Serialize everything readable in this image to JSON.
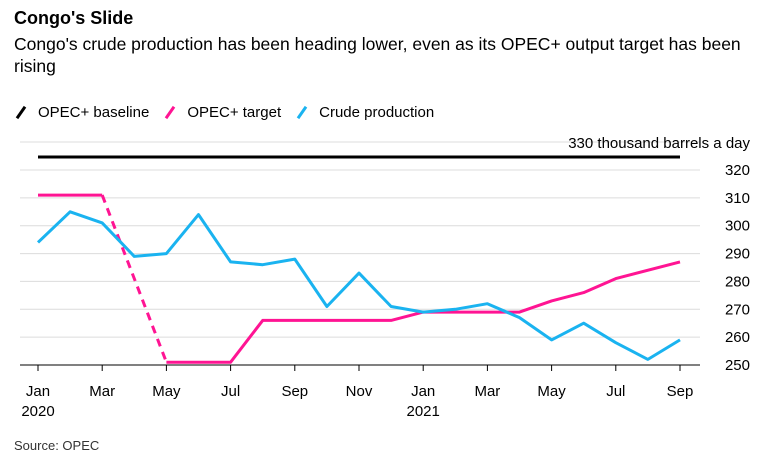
{
  "chart_data": {
    "type": "line",
    "title": "Congo's Slide",
    "subtitle": "Congo's crude production has been heading lower, even as its OPEC+ output target has been rising",
    "unit_label": "330 thousand barrels a day",
    "ylim": [
      250,
      330
    ],
    "y_ticks": [
      320,
      310,
      300,
      290,
      280,
      270,
      260,
      250
    ],
    "x_tick_labels": [
      "Jan",
      "Mar",
      "May",
      "Jul",
      "Sep",
      "Nov",
      "Jan",
      "Mar",
      "May",
      "Jul",
      "Sep"
    ],
    "x_year_labels": [
      {
        "label": "2020",
        "at_month": 0
      },
      {
        "label": "2021",
        "at_month": 12
      }
    ],
    "months": [
      "2020-01",
      "2020-02",
      "2020-03",
      "2020-04",
      "2020-05",
      "2020-06",
      "2020-07",
      "2020-08",
      "2020-09",
      "2020-10",
      "2020-11",
      "2020-12",
      "2021-01",
      "2021-02",
      "2021-03",
      "2021-04",
      "2021-05",
      "2021-06",
      "2021-07",
      "2021-08",
      "2021-09"
    ],
    "grid": "horizontal",
    "legend_position": "top-left",
    "series": [
      {
        "name": "OPEC+ baseline",
        "color": "#000000",
        "points": [
          [
            "2020-01",
            325
          ],
          [
            "2021-09",
            325
          ]
        ]
      },
      {
        "name": "OPEC+ target",
        "color": "#ff1493",
        "points": [
          [
            "2020-01",
            311
          ],
          [
            "2020-03",
            311
          ],
          [
            "2020-05",
            251
          ],
          [
            "2020-07",
            251
          ],
          [
            "2020-08",
            266
          ],
          [
            "2020-12",
            266
          ],
          [
            "2021-01",
            269
          ],
          [
            "2021-04",
            269
          ],
          [
            "2021-05",
            273
          ],
          [
            "2021-06",
            276
          ],
          [
            "2021-07",
            281
          ],
          [
            "2021-09",
            287
          ]
        ],
        "dashed_segment": [
          "2020-03",
          "2020-05"
        ]
      },
      {
        "name": "Crude production",
        "color": "#1ab3f0",
        "values": [
          294,
          305,
          301,
          289,
          290,
          304,
          287,
          286,
          288,
          271,
          283,
          271,
          269,
          270,
          272,
          267,
          259,
          265,
          258,
          252,
          259
        ]
      }
    ]
  },
  "source": "Source: OPEC"
}
